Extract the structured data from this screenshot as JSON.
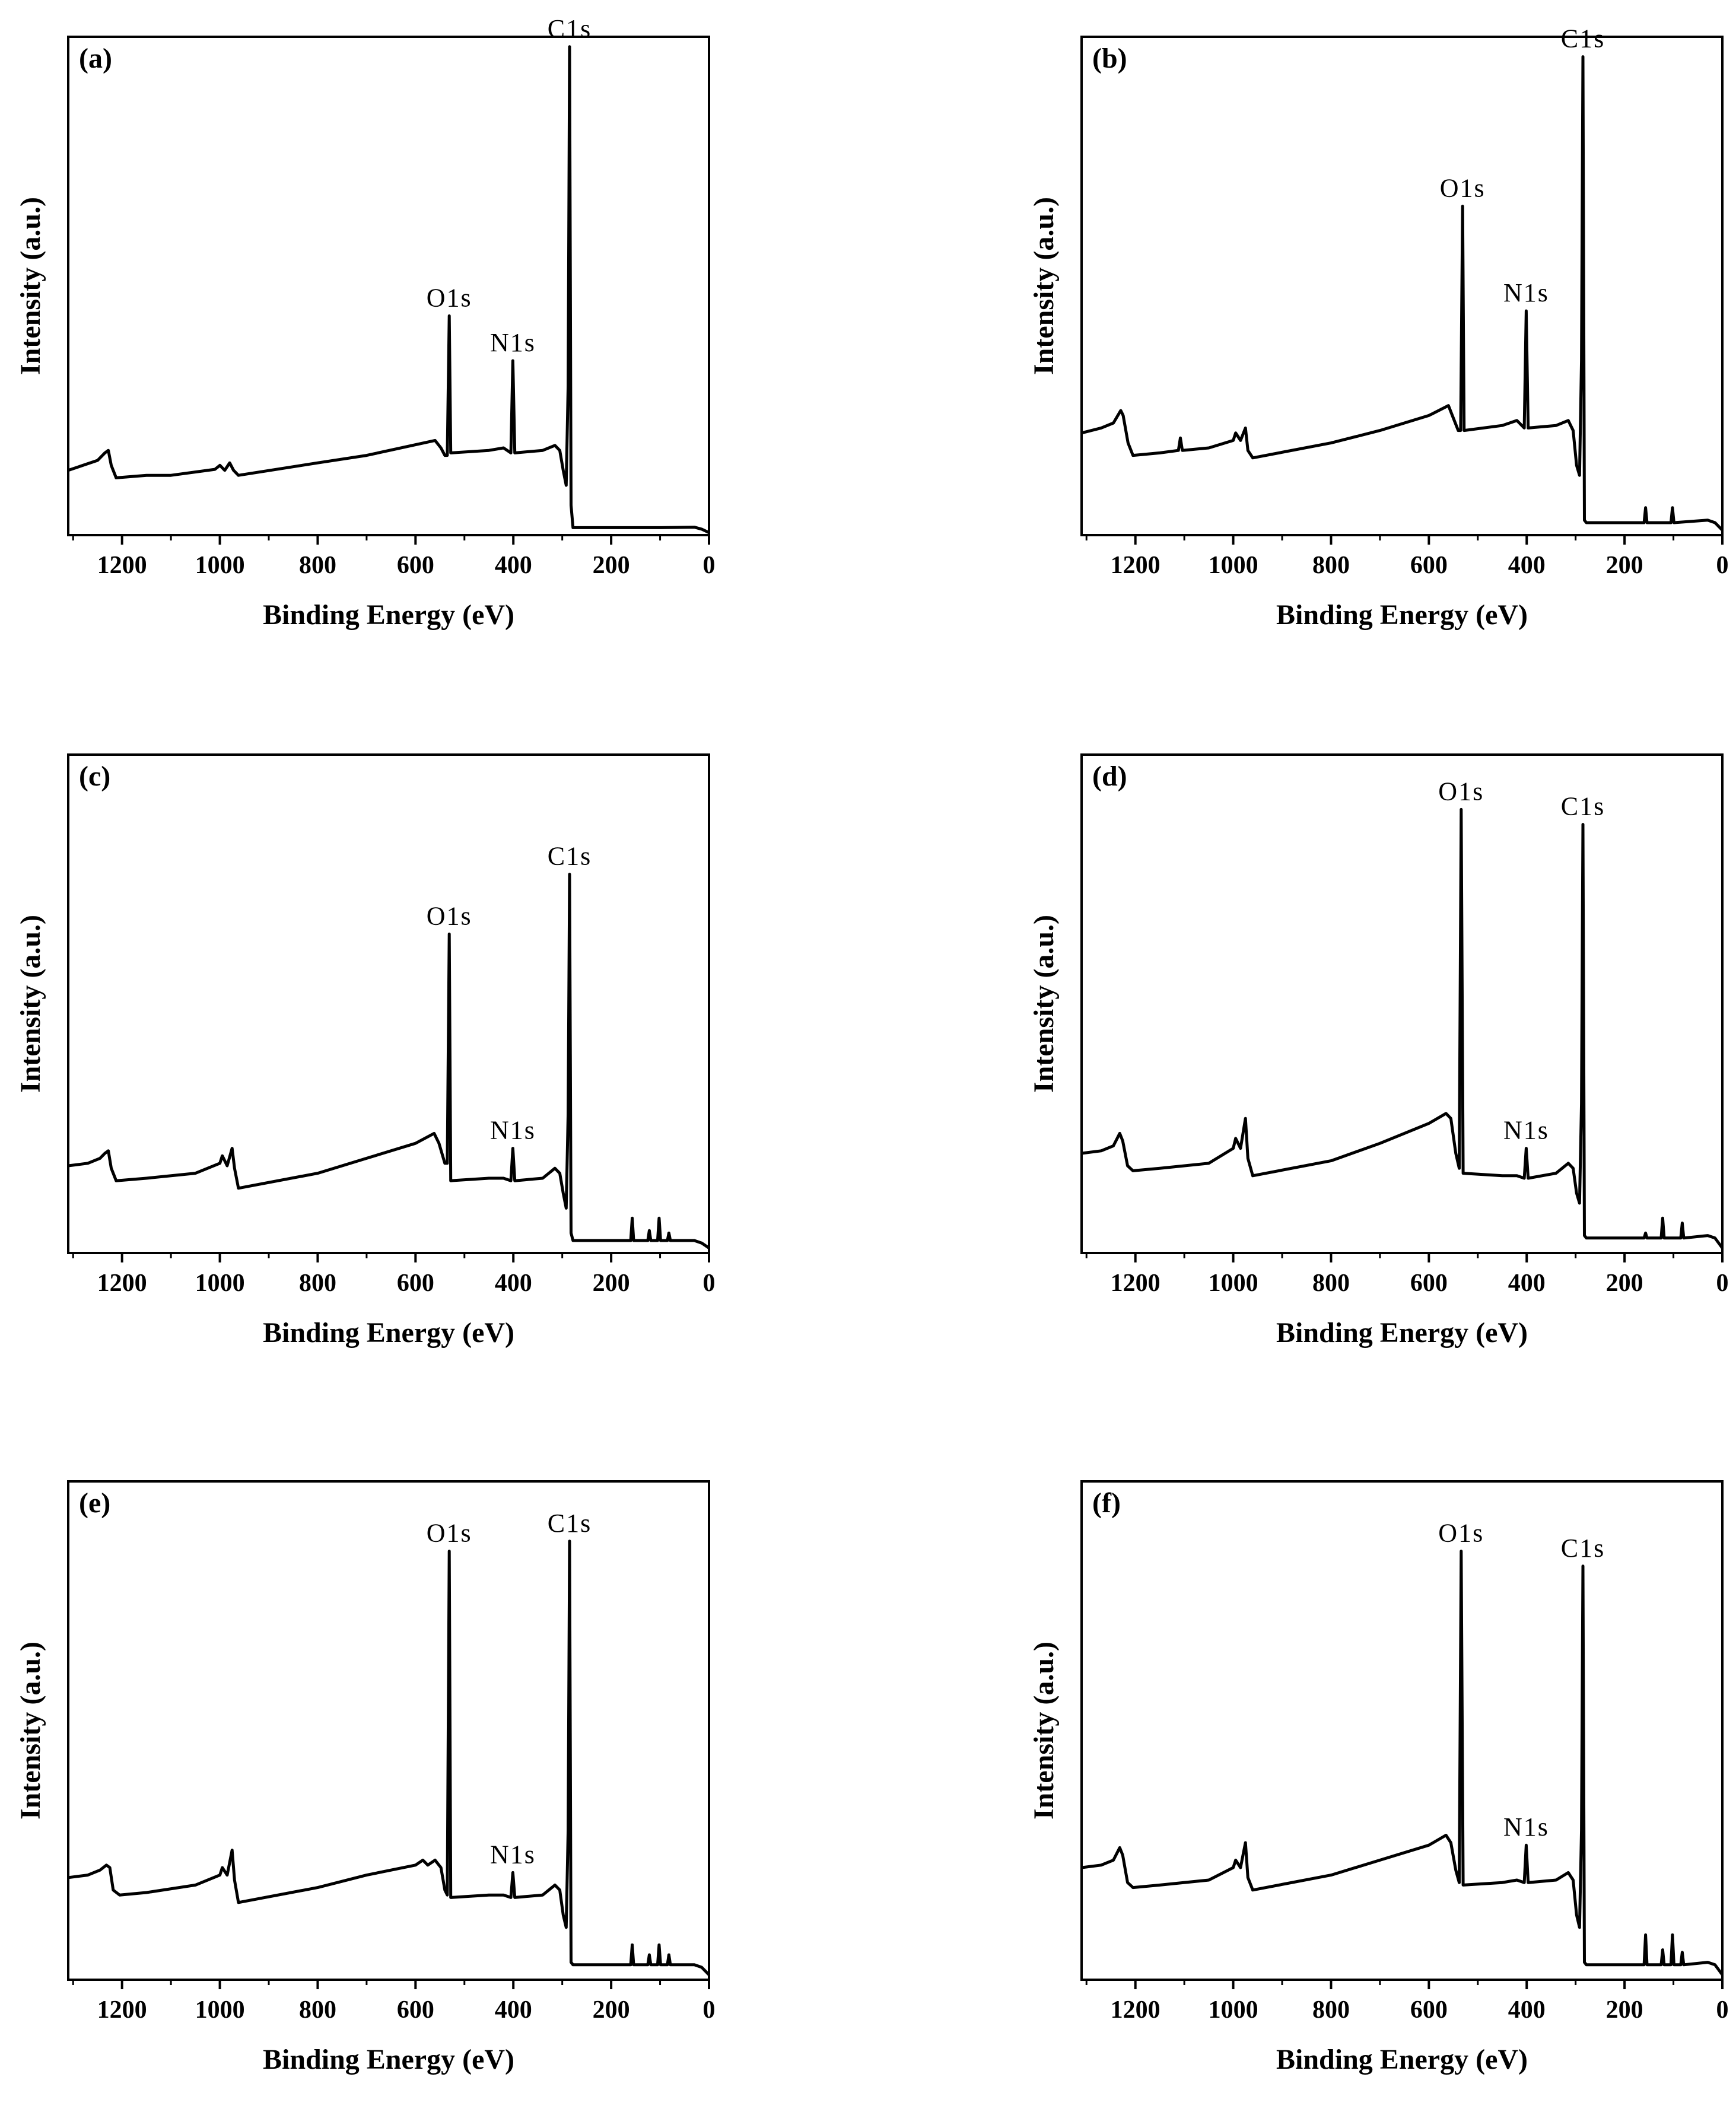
{
  "figure": {
    "ylabel": "Intensity (a.u.)",
    "xlabel": "Binding Energy (eV)"
  },
  "chart_data": [
    {
      "type": "line",
      "panel": "(a)",
      "xlabel": "Binding Energy (eV)",
      "ylabel": "Intensity (a.u.)",
      "xlim": [
        1310,
        0
      ],
      "ylim": [
        0,
        100
      ],
      "xticks": [
        1200,
        1000,
        800,
        600,
        400,
        200,
        0
      ],
      "points": [
        [
          1310,
          13
        ],
        [
          1280,
          14
        ],
        [
          1250,
          15
        ],
        [
          1235,
          16.5
        ],
        [
          1228,
          17
        ],
        [
          1222,
          14
        ],
        [
          1212,
          11.5
        ],
        [
          1150,
          12
        ],
        [
          1100,
          12
        ],
        [
          1010,
          13.2
        ],
        [
          1000,
          14
        ],
        [
          990,
          13
        ],
        [
          980,
          14.5
        ],
        [
          972,
          13
        ],
        [
          962,
          12
        ],
        [
          800,
          14.5
        ],
        [
          700,
          16
        ],
        [
          560,
          19
        ],
        [
          548,
          17.5
        ],
        [
          540,
          16
        ],
        [
          535,
          16
        ],
        [
          531,
          44
        ],
        [
          528,
          16.5
        ],
        [
          450,
          17
        ],
        [
          420,
          17.5
        ],
        [
          405,
          16.5
        ],
        [
          401,
          35
        ],
        [
          397,
          16.5
        ],
        [
          340,
          17
        ],
        [
          315,
          18
        ],
        [
          305,
          17
        ],
        [
          298,
          13
        ],
        [
          292,
          10
        ],
        [
          288,
          30
        ],
        [
          285,
          98
        ],
        [
          282,
          6
        ],
        [
          278,
          1.5
        ],
        [
          200,
          1.5
        ],
        [
          100,
          1.5
        ],
        [
          30,
          1.6
        ],
        [
          15,
          1.2
        ],
        [
          0,
          0.5
        ]
      ],
      "peaks": [
        {
          "label": "C1s",
          "x": 285,
          "y": 98
        },
        {
          "label": "O1s",
          "x": 531,
          "y": 44
        },
        {
          "label": "N1s",
          "x": 401,
          "y": 35
        }
      ]
    },
    {
      "type": "line",
      "panel": "(b)",
      "xlabel": "Binding Energy (eV)",
      "ylabel": "Intensity (a.u.)",
      "xlim": [
        1310,
        0
      ],
      "ylim": [
        0,
        100
      ],
      "xticks": [
        1200,
        1000,
        800,
        600,
        400,
        200,
        0
      ],
      "points": [
        [
          1310,
          20.5
        ],
        [
          1270,
          21.5
        ],
        [
          1245,
          22.5
        ],
        [
          1230,
          25
        ],
        [
          1225,
          24
        ],
        [
          1215,
          18.5
        ],
        [
          1205,
          16
        ],
        [
          1150,
          16.5
        ],
        [
          1112,
          17
        ],
        [
          1108,
          19.5
        ],
        [
          1104,
          17
        ],
        [
          1050,
          17.5
        ],
        [
          1000,
          19
        ],
        [
          995,
          20.5
        ],
        [
          985,
          19
        ],
        [
          975,
          21.5
        ],
        [
          970,
          17
        ],
        [
          960,
          15.5
        ],
        [
          800,
          18.5
        ],
        [
          700,
          21
        ],
        [
          600,
          24
        ],
        [
          560,
          26
        ],
        [
          552,
          24
        ],
        [
          540,
          21
        ],
        [
          535,
          21
        ],
        [
          531,
          66
        ],
        [
          528,
          21
        ],
        [
          450,
          22
        ],
        [
          420,
          23
        ],
        [
          405,
          21.5
        ],
        [
          401,
          45
        ],
        [
          397,
          21.5
        ],
        [
          340,
          22
        ],
        [
          315,
          23
        ],
        [
          305,
          21
        ],
        [
          298,
          14
        ],
        [
          292,
          12
        ],
        [
          288,
          35
        ],
        [
          285,
          96
        ],
        [
          282,
          3
        ],
        [
          278,
          2.5
        ],
        [
          200,
          2.5
        ],
        [
          160,
          2.5
        ],
        [
          157,
          5.5
        ],
        [
          154,
          2.5
        ],
        [
          105,
          2.5
        ],
        [
          102,
          5.5
        ],
        [
          99,
          2.5
        ],
        [
          30,
          3
        ],
        [
          15,
          2.5
        ],
        [
          0,
          1
        ]
      ],
      "peaks": [
        {
          "label": "C1s",
          "x": 285,
          "y": 96
        },
        {
          "label": "O1s",
          "x": 531,
          "y": 66
        },
        {
          "label": "N1s",
          "x": 401,
          "y": 45
        }
      ]
    },
    {
      "type": "line",
      "panel": "(c)",
      "xlabel": "Binding Energy (eV)",
      "ylabel": "Intensity (a.u.)",
      "xlim": [
        1310,
        0
      ],
      "ylim": [
        0,
        100
      ],
      "xticks": [
        1200,
        1000,
        800,
        600,
        400,
        200,
        0
      ],
      "points": [
        [
          1310,
          17.5
        ],
        [
          1270,
          18
        ],
        [
          1245,
          19
        ],
        [
          1235,
          20
        ],
        [
          1228,
          20.5
        ],
        [
          1222,
          17
        ],
        [
          1212,
          14.5
        ],
        [
          1150,
          15
        ],
        [
          1050,
          16
        ],
        [
          1000,
          18
        ],
        [
          995,
          19.5
        ],
        [
          985,
          17.5
        ],
        [
          975,
          21
        ],
        [
          970,
          17
        ],
        [
          962,
          13
        ],
        [
          800,
          16
        ],
        [
          700,
          19
        ],
        [
          600,
          22
        ],
        [
          562,
          24
        ],
        [
          552,
          22
        ],
        [
          540,
          18
        ],
        [
          535,
          18
        ],
        [
          531,
          64
        ],
        [
          528,
          14.5
        ],
        [
          450,
          15
        ],
        [
          420,
          15
        ],
        [
          405,
          14.5
        ],
        [
          401,
          21
        ],
        [
          397,
          14.5
        ],
        [
          340,
          15
        ],
        [
          315,
          17
        ],
        [
          305,
          16
        ],
        [
          298,
          12
        ],
        [
          292,
          9
        ],
        [
          288,
          28
        ],
        [
          285,
          76
        ],
        [
          282,
          4
        ],
        [
          278,
          2.5
        ],
        [
          200,
          2.5
        ],
        [
          160,
          2.5
        ],
        [
          157,
          7
        ],
        [
          154,
          2.5
        ],
        [
          125,
          2.5
        ],
        [
          122,
          4.5
        ],
        [
          119,
          2.5
        ],
        [
          105,
          2.5
        ],
        [
          102,
          7
        ],
        [
          99,
          2.5
        ],
        [
          85,
          2.5
        ],
        [
          82,
          4
        ],
        [
          79,
          2.5
        ],
        [
          30,
          2.5
        ],
        [
          15,
          2
        ],
        [
          0,
          1
        ]
      ],
      "peaks": [
        {
          "label": "C1s",
          "x": 285,
          "y": 76
        },
        {
          "label": "O1s",
          "x": 531,
          "y": 64
        },
        {
          "label": "N1s",
          "x": 401,
          "y": 21
        }
      ]
    },
    {
      "type": "line",
      "panel": "(d)",
      "xlabel": "Binding Energy (eV)",
      "ylabel": "Intensity (a.u.)",
      "xlim": [
        1310,
        0
      ],
      "ylim": [
        0,
        100
      ],
      "xticks": [
        1200,
        1000,
        800,
        600,
        400,
        200,
        0
      ],
      "points": [
        [
          1310,
          20
        ],
        [
          1270,
          20.5
        ],
        [
          1245,
          21.5
        ],
        [
          1232,
          24
        ],
        [
          1226,
          22.5
        ],
        [
          1216,
          17.5
        ],
        [
          1205,
          16.5
        ],
        [
          1150,
          17
        ],
        [
          1050,
          18
        ],
        [
          1000,
          21
        ],
        [
          995,
          23
        ],
        [
          985,
          21
        ],
        [
          975,
          27
        ],
        [
          970,
          19
        ],
        [
          960,
          15.5
        ],
        [
          800,
          18.5
        ],
        [
          700,
          22
        ],
        [
          600,
          26
        ],
        [
          565,
          28
        ],
        [
          555,
          27
        ],
        [
          545,
          20
        ],
        [
          538,
          17
        ],
        [
          534,
          89
        ],
        [
          530,
          16
        ],
        [
          450,
          15.5
        ],
        [
          420,
          15.5
        ],
        [
          405,
          15
        ],
        [
          401,
          21
        ],
        [
          397,
          15
        ],
        [
          340,
          16
        ],
        [
          315,
          18
        ],
        [
          305,
          17
        ],
        [
          298,
          12
        ],
        [
          292,
          10
        ],
        [
          288,
          30
        ],
        [
          285,
          86
        ],
        [
          282,
          3.5
        ],
        [
          278,
          3
        ],
        [
          200,
          3
        ],
        [
          160,
          3
        ],
        [
          157,
          4
        ],
        [
          154,
          3
        ],
        [
          125,
          3
        ],
        [
          122,
          7
        ],
        [
          119,
          3
        ],
        [
          85,
          3
        ],
        [
          82,
          6
        ],
        [
          79,
          3
        ],
        [
          30,
          3.5
        ],
        [
          15,
          3
        ],
        [
          0,
          1
        ]
      ],
      "peaks": [
        {
          "label": "C1s",
          "x": 285,
          "y": 86
        },
        {
          "label": "O1s",
          "x": 534,
          "y": 89
        },
        {
          "label": "N1s",
          "x": 401,
          "y": 21
        }
      ]
    },
    {
      "type": "line",
      "panel": "(e)",
      "xlabel": "Binding Energy (eV)",
      "ylabel": "Intensity (a.u.)",
      "xlim": [
        1310,
        0
      ],
      "ylim": [
        0,
        100
      ],
      "xticks": [
        1200,
        1000,
        800,
        600,
        400,
        200,
        0
      ],
      "points": [
        [
          1310,
          20.5
        ],
        [
          1270,
          21
        ],
        [
          1245,
          22
        ],
        [
          1232,
          23
        ],
        [
          1225,
          22.5
        ],
        [
          1218,
          18
        ],
        [
          1205,
          17
        ],
        [
          1150,
          17.5
        ],
        [
          1050,
          19
        ],
        [
          1000,
          21
        ],
        [
          995,
          22.5
        ],
        [
          985,
          21
        ],
        [
          975,
          26
        ],
        [
          970,
          20
        ],
        [
          962,
          15.5
        ],
        [
          800,
          18.5
        ],
        [
          700,
          21
        ],
        [
          600,
          23
        ],
        [
          585,
          24
        ],
        [
          575,
          23
        ],
        [
          560,
          24
        ],
        [
          548,
          22.5
        ],
        [
          540,
          18
        ],
        [
          535,
          17
        ],
        [
          531,
          86
        ],
        [
          528,
          16.5
        ],
        [
          450,
          17
        ],
        [
          420,
          17
        ],
        [
          405,
          16.5
        ],
        [
          401,
          21.5
        ],
        [
          397,
          16.5
        ],
        [
          340,
          17
        ],
        [
          315,
          19
        ],
        [
          305,
          18
        ],
        [
          298,
          13
        ],
        [
          292,
          10.5
        ],
        [
          288,
          30
        ],
        [
          285,
          88
        ],
        [
          282,
          3.5
        ],
        [
          278,
          3
        ],
        [
          200,
          3
        ],
        [
          160,
          3
        ],
        [
          157,
          7
        ],
        [
          154,
          3
        ],
        [
          125,
          3
        ],
        [
          122,
          5
        ],
        [
          119,
          3
        ],
        [
          105,
          3
        ],
        [
          102,
          7
        ],
        [
          99,
          3
        ],
        [
          85,
          3
        ],
        [
          82,
          5
        ],
        [
          79,
          3
        ],
        [
          30,
          3
        ],
        [
          15,
          2.5
        ],
        [
          0,
          1
        ]
      ],
      "peaks": [
        {
          "label": "C1s",
          "x": 285,
          "y": 88
        },
        {
          "label": "O1s",
          "x": 531,
          "y": 86
        },
        {
          "label": "N1s",
          "x": 401,
          "y": 21.5
        }
      ]
    },
    {
      "type": "line",
      "panel": "(f)",
      "xlabel": "Binding Energy (eV)",
      "ylabel": "Intensity (a.u.)",
      "xlim": [
        1310,
        0
      ],
      "ylim": [
        0,
        100
      ],
      "xticks": [
        1200,
        1000,
        800,
        600,
        400,
        200,
        0
      ],
      "points": [
        [
          1310,
          22.5
        ],
        [
          1270,
          23
        ],
        [
          1245,
          24
        ],
        [
          1232,
          26.5
        ],
        [
          1226,
          25
        ],
        [
          1216,
          19.5
        ],
        [
          1205,
          18.5
        ],
        [
          1150,
          19
        ],
        [
          1050,
          20
        ],
        [
          1000,
          22.5
        ],
        [
          995,
          24
        ],
        [
          985,
          22.5
        ],
        [
          975,
          27.5
        ],
        [
          970,
          20.5
        ],
        [
          960,
          18
        ],
        [
          800,
          21
        ],
        [
          700,
          24
        ],
        [
          600,
          27
        ],
        [
          565,
          29
        ],
        [
          555,
          27.5
        ],
        [
          545,
          22
        ],
        [
          538,
          19.5
        ],
        [
          534,
          86
        ],
        [
          530,
          19
        ],
        [
          450,
          19.5
        ],
        [
          420,
          20
        ],
        [
          405,
          19.5
        ],
        [
          401,
          27
        ],
        [
          397,
          19.5
        ],
        [
          340,
          20
        ],
        [
          315,
          21.5
        ],
        [
          305,
          20
        ],
        [
          298,
          13
        ],
        [
          292,
          10.5
        ],
        [
          288,
          30
        ],
        [
          285,
          83
        ],
        [
          282,
          3.5
        ],
        [
          278,
          3
        ],
        [
          200,
          3
        ],
        [
          160,
          3
        ],
        [
          157,
          9
        ],
        [
          154,
          3
        ],
        [
          125,
          3
        ],
        [
          122,
          6
        ],
        [
          119,
          3
        ],
        [
          105,
          3
        ],
        [
          102,
          9
        ],
        [
          99,
          3
        ],
        [
          85,
          3
        ],
        [
          82,
          5.5
        ],
        [
          79,
          3
        ],
        [
          30,
          3.5
        ],
        [
          15,
          3
        ],
        [
          0,
          1
        ]
      ],
      "peaks": [
        {
          "label": "C1s",
          "x": 285,
          "y": 83
        },
        {
          "label": "O1s",
          "x": 534,
          "y": 86
        },
        {
          "label": "N1s",
          "x": 401,
          "y": 27
        }
      ]
    }
  ]
}
